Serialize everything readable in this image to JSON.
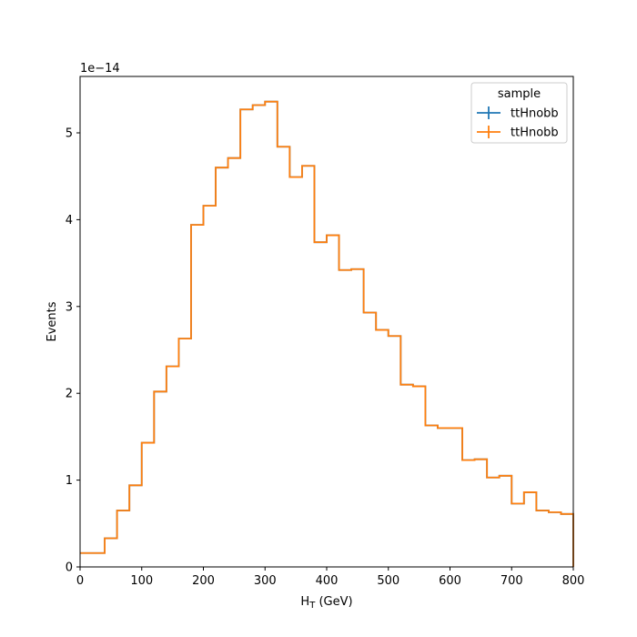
{
  "chart_data": {
    "type": "line",
    "drawstyle": "steps-post",
    "xlabel": "H",
    "xlabel_sub": "T",
    "xlabel_unit": " (GeV)",
    "ylabel": "Events",
    "y_offset_text": "1e−14",
    "y_scale_factor": 1e-14,
    "xlim": [
      0,
      800
    ],
    "ylim": [
      0,
      5.65
    ],
    "xticks": [
      0,
      100,
      200,
      300,
      400,
      500,
      600,
      700,
      800
    ],
    "yticks": [
      0,
      1,
      2,
      3,
      4,
      5
    ],
    "grid": false,
    "legend": {
      "title": "sample",
      "placement": "top-right",
      "entries": [
        {
          "name": "ttHnobb",
          "color": "#1f77b4"
        },
        {
          "name": "ttHnobb",
          "color": "#ff7f0e"
        }
      ]
    },
    "bin_edges": [
      0,
      20,
      40,
      60,
      80,
      100,
      120,
      140,
      160,
      180,
      200,
      220,
      240,
      260,
      280,
      300,
      320,
      340,
      360,
      380,
      400,
      420,
      440,
      460,
      480,
      500,
      520,
      540,
      560,
      580,
      600,
      620,
      640,
      660,
      680,
      700,
      720,
      740,
      760,
      780,
      800
    ],
    "series": [
      {
        "name": "ttHnobb",
        "color": "#1f77b4",
        "values": [
          0.16,
          0.16,
          0.33,
          0.65,
          0.94,
          1.43,
          2.02,
          2.31,
          2.63,
          3.94,
          4.16,
          4.6,
          4.71,
          5.27,
          5.32,
          5.36,
          4.84,
          4.49,
          4.62,
          3.74,
          3.82,
          3.42,
          3.43,
          2.93,
          2.73,
          2.66,
          2.1,
          2.08,
          1.63,
          1.6,
          1.6,
          1.23,
          1.24,
          1.03,
          1.05,
          0.73,
          0.86,
          0.65,
          0.63,
          0.61
        ]
      },
      {
        "name": "ttHnobb",
        "color": "#ff7f0e",
        "values": [
          0.16,
          0.16,
          0.33,
          0.65,
          0.94,
          1.43,
          2.02,
          2.31,
          2.63,
          3.94,
          4.16,
          4.6,
          4.71,
          5.27,
          5.32,
          5.36,
          4.84,
          4.49,
          4.62,
          3.74,
          3.82,
          3.42,
          3.43,
          2.93,
          2.73,
          2.66,
          2.1,
          2.08,
          1.63,
          1.6,
          1.6,
          1.23,
          1.24,
          1.03,
          1.05,
          0.73,
          0.86,
          0.65,
          0.63,
          0.61
        ]
      }
    ]
  }
}
